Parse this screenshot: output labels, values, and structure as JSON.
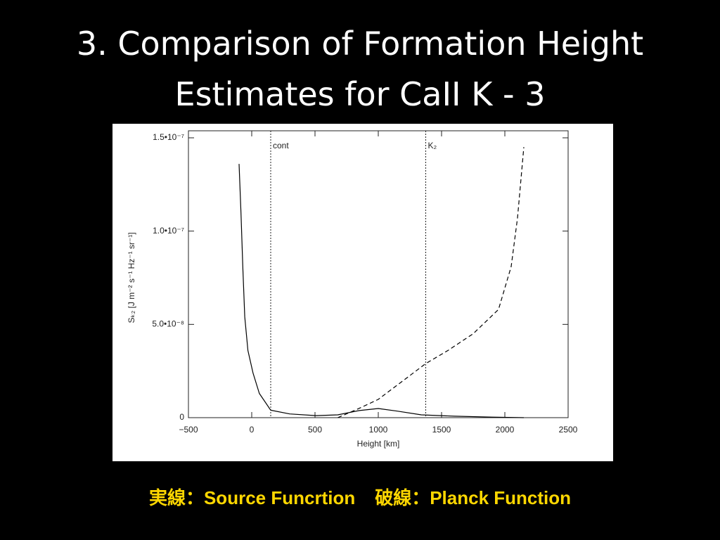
{
  "title": "3. Comparison of Formation Height Estimates for CaII K - 3",
  "caption": [
    "実線：Source Funcrtion",
    "破線：Planck Function"
  ],
  "chart_data": {
    "type": "line",
    "x_label": "Height [km]",
    "y_label": "Sₖ₂ [J m⁻² s⁻¹ Hz⁻¹ sr⁻¹]",
    "xlim": [
      -500,
      2500
    ],
    "xticks": [
      {
        "value": -500,
        "label": "−500"
      },
      0,
      500,
      1000,
      1500,
      2000,
      2500
    ],
    "ylim": [
      0,
      1.5e-07
    ],
    "yticks": [
      0,
      {
        "value": 5e-08,
        "label": "5.0•10⁻⁸"
      },
      {
        "value": 1e-07,
        "label": "1.0•10⁻⁷"
      },
      {
        "value": 1.5e-07,
        "label": "1.5•10⁻⁷"
      }
    ],
    "annotations": [
      {
        "text": "cont",
        "x": 150
      },
      {
        "text": "K₂",
        "x": 1375
      }
    ],
    "series": [
      {
        "color": "#000000",
        "style": "solid",
        "x": [
          -100,
          -85,
          -70,
          -55,
          -30,
          10,
          60,
          150,
          300,
          510,
          680,
          850,
          1000,
          1150,
          1340,
          1600,
          1900,
          2150
        ],
        "values": [
          1.36e-07,
          1.1e-07,
          8e-08,
          5.4e-08,
          3.6e-08,
          2.4e-08,
          1.3e-08,
          4e-09,
          2e-09,
          1.1e-09,
          1.5e-09,
          3.8e-09,
          4.9e-09,
          3.5e-09,
          1.5e-09,
          8e-10,
          3e-10,
          0
        ]
      },
      {
        "color": "#000000",
        "style": "dashed",
        "x": [
          680,
          850,
          1000,
          1200,
          1375,
          1550,
          1750,
          1950,
          2050,
          2100,
          2150
        ],
        "values": [
          0,
          5e-09,
          9.8e-09,
          2e-08,
          2.9e-08,
          3.6e-08,
          4.5e-08,
          5.8e-08,
          8.1e-08,
          1.07e-07,
          1.45e-07
        ]
      }
    ]
  }
}
